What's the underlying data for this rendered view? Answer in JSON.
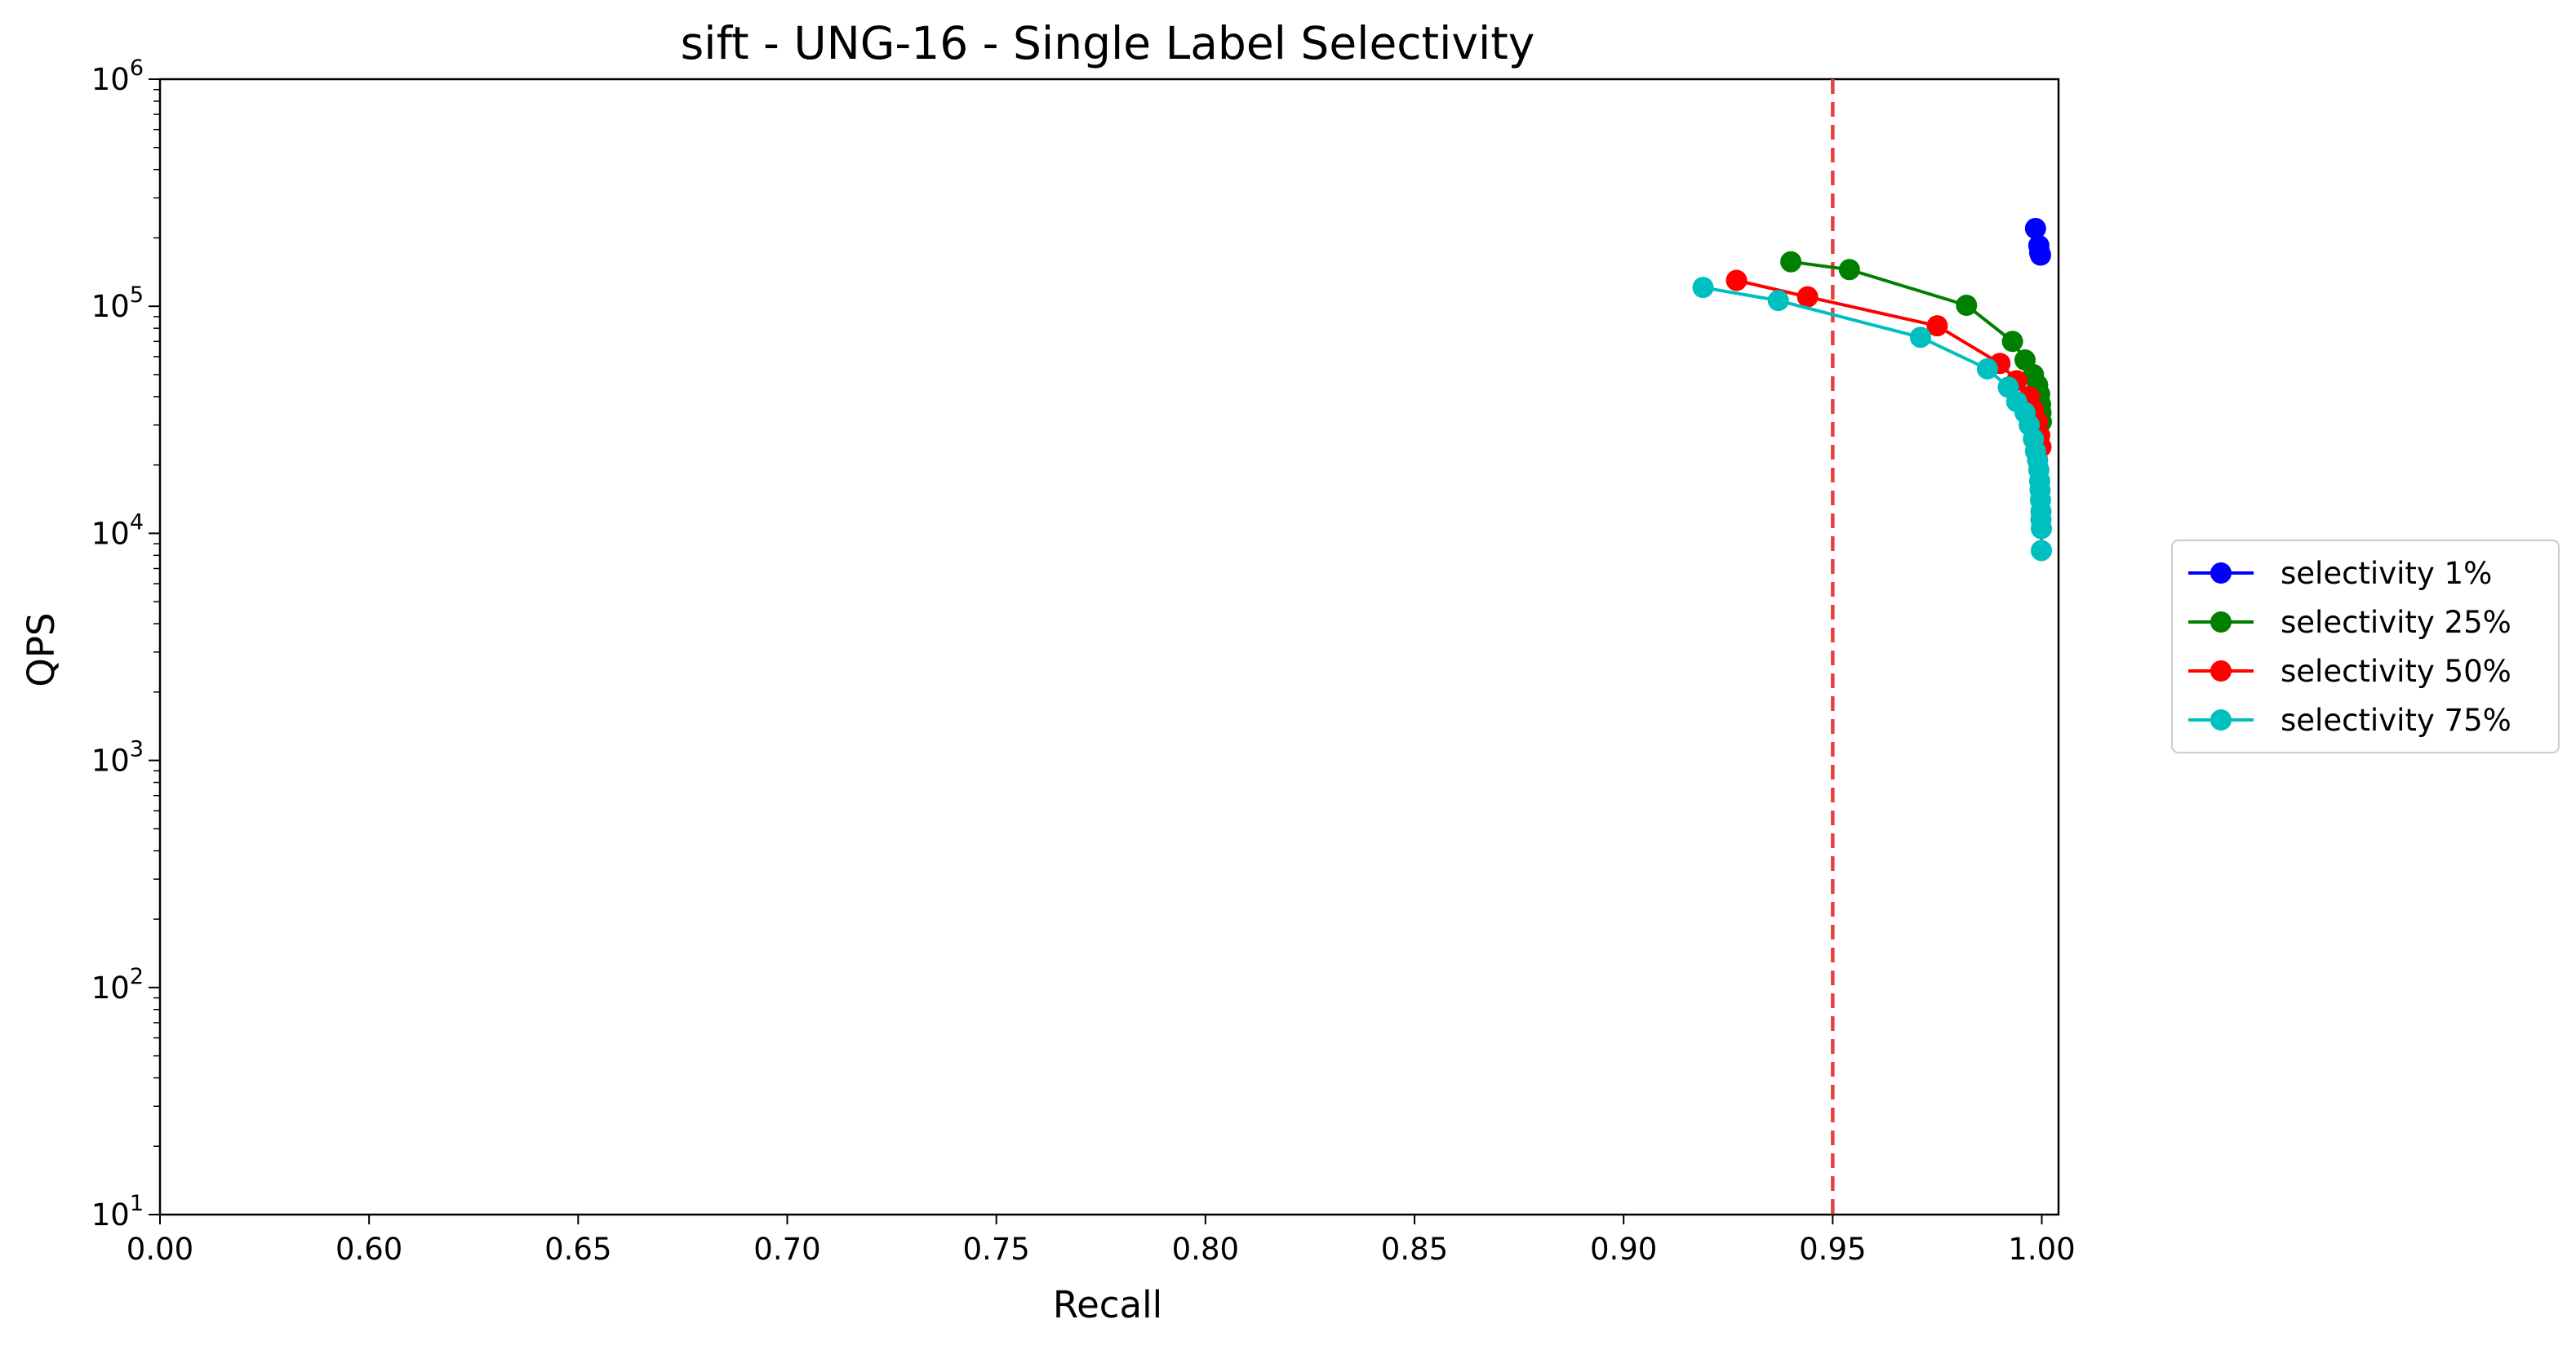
{
  "chart_data": {
    "type": "line",
    "title": "sift - UNG-16 - Single Label Selectivity",
    "xlabel": "Recall",
    "ylabel": "QPS",
    "x_scale": "broken-linear",
    "x_tick_labels": [
      "0.00",
      "0.60",
      "0.65",
      "0.70",
      "0.75",
      "0.80",
      "0.85",
      "0.90",
      "0.95",
      "1.00"
    ],
    "xlim": [
      0.55,
      1.004
    ],
    "y_scale": "log",
    "ylim": [
      10,
      1000000
    ],
    "y_ticks": [
      {
        "base": "10",
        "exp": "1"
      },
      {
        "base": "10",
        "exp": "2"
      },
      {
        "base": "10",
        "exp": "3"
      },
      {
        "base": "10",
        "exp": "4"
      },
      {
        "base": "10",
        "exp": "5"
      },
      {
        "base": "10",
        "exp": "6"
      }
    ],
    "reference_line": {
      "x": 0.95,
      "color": "#e8413c",
      "style": "dashed"
    },
    "grid": false,
    "legend_position": "right, outside plot",
    "series": [
      {
        "name": "selectivity 1%",
        "color": "#0000ff",
        "points": [
          [
            0.9985,
            220000
          ],
          [
            0.9993,
            185000
          ],
          [
            0.9995,
            172000
          ],
          [
            0.9997,
            168000
          ]
        ]
      },
      {
        "name": "selectivity 25%",
        "color": "#008000",
        "points": [
          [
            0.94,
            157000
          ],
          [
            0.954,
            145000
          ],
          [
            0.982,
            101000
          ],
          [
            0.993,
            70000
          ],
          [
            0.996,
            58000
          ],
          [
            0.998,
            50000
          ],
          [
            0.999,
            45000
          ],
          [
            0.9995,
            41000
          ],
          [
            0.9997,
            37000
          ],
          [
            0.9998,
            34000
          ],
          [
            0.9999,
            31000
          ]
        ]
      },
      {
        "name": "selectivity 50%",
        "color": "#ff0000",
        "points": [
          [
            0.927,
            130000
          ],
          [
            0.944,
            110000
          ],
          [
            0.975,
            82000
          ],
          [
            0.99,
            56000
          ],
          [
            0.994,
            47000
          ],
          [
            0.997,
            40000
          ],
          [
            0.998,
            35000
          ],
          [
            0.999,
            31000
          ],
          [
            0.9995,
            27000
          ],
          [
            0.9998,
            24000
          ]
        ]
      },
      {
        "name": "selectivity 75%",
        "color": "#00bfbf",
        "points": [
          [
            0.919,
            121000
          ],
          [
            0.937,
            106000
          ],
          [
            0.971,
            73000
          ],
          [
            0.987,
            53000
          ],
          [
            0.992,
            44000
          ],
          [
            0.994,
            38000
          ],
          [
            0.996,
            34000
          ],
          [
            0.997,
            30000
          ],
          [
            0.998,
            26000
          ],
          [
            0.9985,
            23000
          ],
          [
            0.999,
            21000
          ],
          [
            0.9993,
            19000
          ],
          [
            0.9995,
            17000
          ],
          [
            0.9996,
            15500
          ],
          [
            0.9997,
            14000
          ],
          [
            0.9998,
            12500
          ],
          [
            0.9998,
            11500
          ],
          [
            0.9999,
            10500
          ],
          [
            0.9999,
            8400
          ]
        ]
      }
    ]
  }
}
